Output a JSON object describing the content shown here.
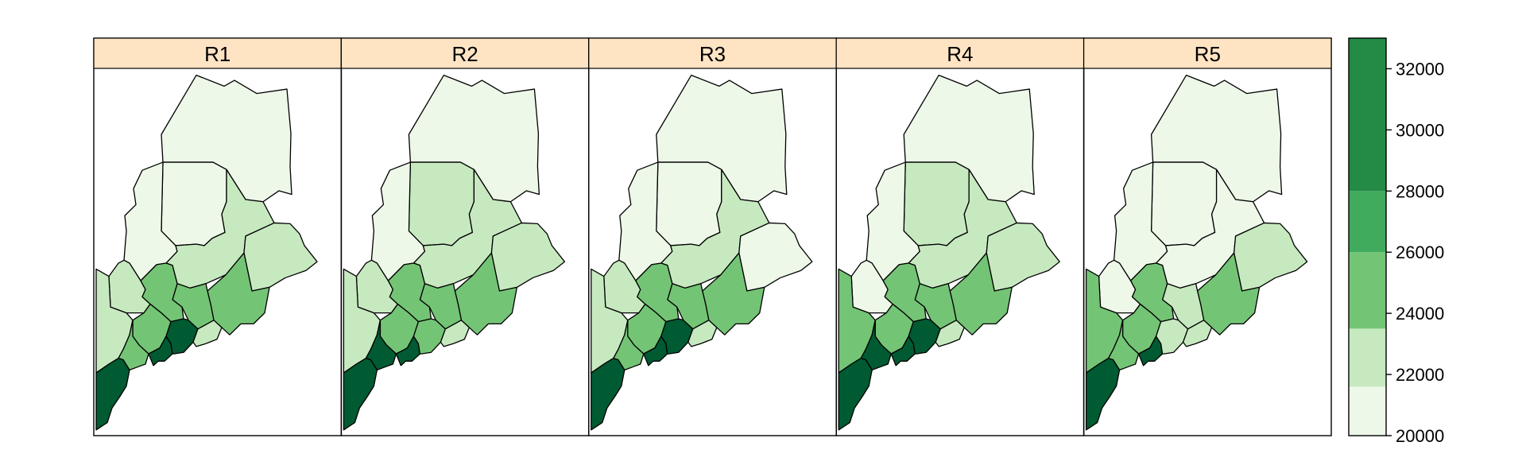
{
  "chart_data": {
    "type": "choropleth",
    "panels": [
      {
        "label": "R1",
        "region_values": {
          "aroostook": 21000,
          "piscataquis": 21000,
          "somerset": 21000,
          "franklin": 23000,
          "oxford": 23000,
          "penobscot": 23000,
          "washington": 23000,
          "hancock": 25000,
          "waldo": 25000,
          "kennebec": 25000,
          "androscoggin": 25000,
          "york": 33000,
          "cumberland": 25000,
          "sagadahoc": 33000,
          "lincoln": 33000,
          "knox": 23000
        }
      },
      {
        "label": "R2",
        "region_values": {
          "aroostook": 21000,
          "piscataquis": 23000,
          "somerset": 21000,
          "franklin": 23000,
          "oxford": 23000,
          "penobscot": 23000,
          "washington": 23000,
          "hancock": 25000,
          "waldo": 25000,
          "kennebec": 25000,
          "androscoggin": 25000,
          "york": 33000,
          "cumberland": 33000,
          "sagadahoc": 33000,
          "lincoln": 25000,
          "knox": 23000
        }
      },
      {
        "label": "R3",
        "region_values": {
          "aroostook": 21000,
          "piscataquis": 21000,
          "somerset": 21000,
          "franklin": 23000,
          "oxford": 23000,
          "penobscot": 23000,
          "washington": 21000,
          "hancock": 25000,
          "waldo": 25000,
          "kennebec": 25000,
          "androscoggin": 25000,
          "york": 33000,
          "cumberland": 25000,
          "sagadahoc": 33000,
          "lincoln": 33000,
          "knox": 23000
        }
      },
      {
        "label": "R4",
        "region_values": {
          "aroostook": 21000,
          "piscataquis": 23000,
          "somerset": 21000,
          "franklin": 21000,
          "oxford": 25000,
          "penobscot": 23000,
          "washington": 23000,
          "hancock": 25000,
          "waldo": 25000,
          "kennebec": 25000,
          "androscoggin": 25000,
          "york": 33000,
          "cumberland": 33000,
          "sagadahoc": 33000,
          "lincoln": 33000,
          "knox": 23000
        }
      },
      {
        "label": "R5",
        "region_values": {
          "aroostook": 21000,
          "piscataquis": 21000,
          "somerset": 21000,
          "franklin": 21000,
          "oxford": 25000,
          "penobscot": 21000,
          "washington": 23000,
          "hancock": 25000,
          "waldo": 23000,
          "kennebec": 25000,
          "androscoggin": 25000,
          "york": 33000,
          "cumberland": 25000,
          "sagadahoc": 33000,
          "lincoln": 23000,
          "knox": 23000
        }
      }
    ],
    "color_key": {
      "breaks": [
        20000,
        21600,
        23500,
        26000,
        28000,
        33000
      ],
      "colors": [
        "#edf8e9",
        "#c7e9c0",
        "#74c476",
        "#41ab5d",
        "#238b45",
        "#005a32"
      ],
      "tick_labels": [
        "20000",
        "22000",
        "24000",
        "26000",
        "28000",
        "30000",
        "32000"
      ],
      "tick_values": [
        20000,
        22000,
        24000,
        26000,
        28000,
        30000,
        32000
      ]
    }
  }
}
